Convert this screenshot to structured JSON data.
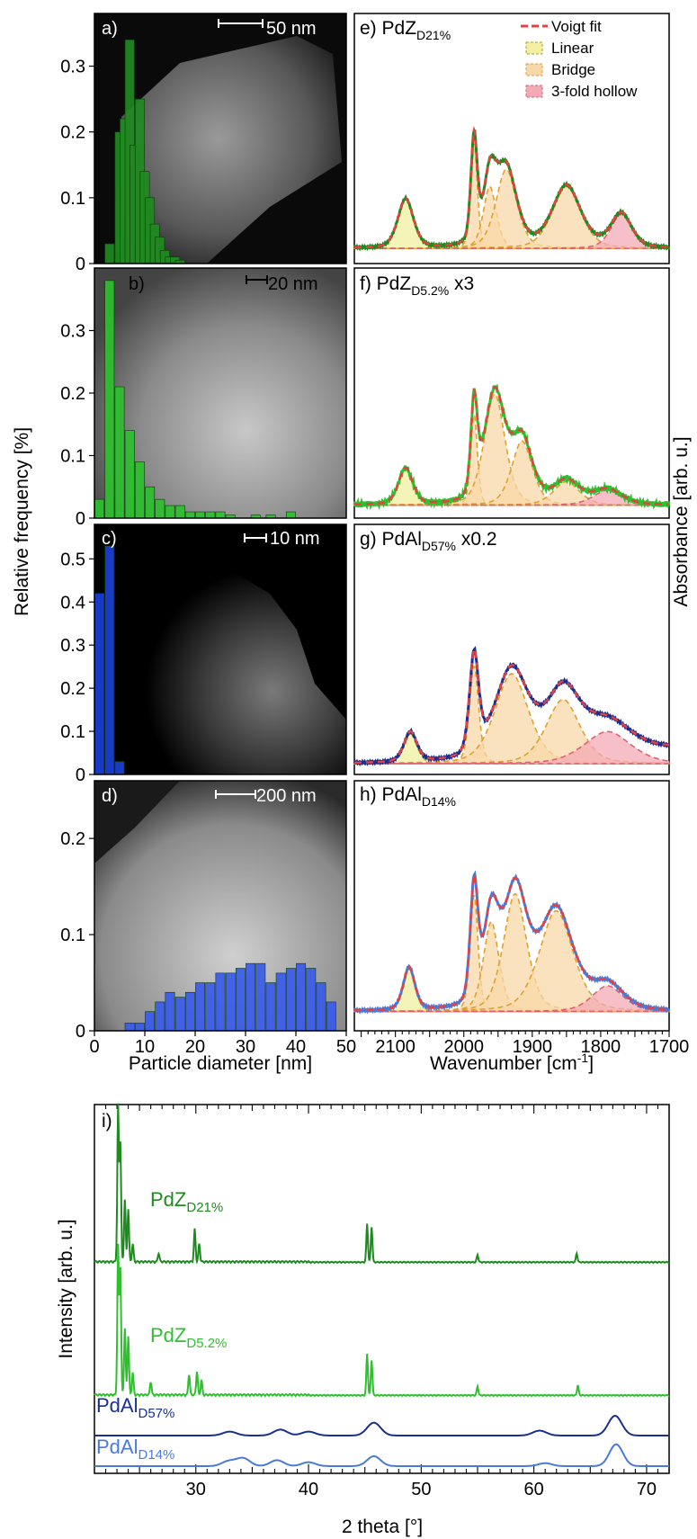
{
  "colors": {
    "green_dark": "#1f8a1f",
    "green_light": "#2fbf2f",
    "blue_dark": "#1a2f8f",
    "blue_light": "#4a7ad8",
    "voigt": "#e84040",
    "linear_fill": "#f2f0a0",
    "linear_line": "#b0a020",
    "bridge_fill": "#f8d8a8",
    "bridge_line": "#e0a030",
    "hollow_fill": "#f4aab4"
  },
  "histogram": {
    "y_axis_label": "Relative frequency [%]",
    "x_axis_label": "Particle diameter [nm]",
    "x_ticks": [
      "0",
      "10",
      "20",
      "30",
      "40",
      "50"
    ],
    "panels": [
      {
        "letter": "a)",
        "scale_text": "50 nm",
        "y_ticks": [
          "0",
          "0.1",
          "0.2",
          "0.3"
        ]
      },
      {
        "letter": "b)",
        "scale_text": "20 nm",
        "y_ticks": [
          "0",
          "0.1",
          "0.2",
          "0.3"
        ]
      },
      {
        "letter": "c)",
        "scale_text": "10 nm",
        "y_ticks": [
          "0",
          "0.1",
          "0.2",
          "0.3",
          "0.4",
          "0.5"
        ]
      },
      {
        "letter": "d)",
        "scale_text": "200 nm",
        "y_ticks": [
          "0",
          "0.1",
          "0.2"
        ]
      }
    ]
  },
  "ir": {
    "y_axis_label": "Absorbance [arb. u.]",
    "x_axis_label": "Wavenumber [cm",
    "x_axis_label_sup": "-1",
    "x_axis_label_end": "]",
    "x_ticks": [
      "2100",
      "2000",
      "1900",
      "1800",
      "1700"
    ],
    "legend": {
      "voigt": "Voigt fit",
      "linear": "Linear",
      "bridge": "Bridge",
      "hollow": "3-fold hollow"
    },
    "panels": [
      {
        "letter": "e) PdZ",
        "sub": "D21%",
        "suffix": ""
      },
      {
        "letter": "f) PdZ",
        "sub": "D5.2%",
        "suffix": " x3"
      },
      {
        "letter": "g) PdAl",
        "sub": "D57%",
        "suffix": " x0.2"
      },
      {
        "letter": "h) PdAl",
        "sub": "D14%",
        "suffix": ""
      }
    ]
  },
  "xrd": {
    "letter": "i)",
    "y_axis_label": "Intensity [arb. u.]",
    "x_axis_label": "2 theta [°]",
    "x_ticks": [
      "30",
      "40",
      "50",
      "60",
      "70"
    ],
    "labels": [
      {
        "main": "PdZ",
        "sub": "D21%"
      },
      {
        "main": "PdZ",
        "sub": "D5.2%"
      },
      {
        "main": "PdAl",
        "sub": "D57%"
      },
      {
        "main": "PdAl",
        "sub": "D14%"
      }
    ]
  },
  "chart_data": [
    {
      "type": "bar",
      "title": "a)",
      "xlabel": "Particle diameter [nm]",
      "ylabel": "Relative frequency [%]",
      "xlim": [
        0,
        50
      ],
      "ylim": [
        0,
        0.38
      ],
      "x": [
        3,
        5,
        6,
        7,
        8,
        9,
        10,
        11,
        12,
        13,
        14,
        15,
        16,
        17
      ],
      "values": [
        0.03,
        0.2,
        0.22,
        0.34,
        0.18,
        0.25,
        0.14,
        0.1,
        0.06,
        0.04,
        0.02,
        0.01,
        0.01,
        0.005
      ]
    },
    {
      "type": "bar",
      "title": "b)",
      "xlabel": "Particle diameter [nm]",
      "ylabel": "Relative frequency [%]",
      "xlim": [
        0,
        50
      ],
      "ylim": [
        0,
        0.4
      ],
      "x": [
        1,
        3,
        5,
        7,
        9,
        11,
        13,
        15,
        17,
        19,
        21,
        23,
        25,
        27,
        32,
        35,
        39
      ],
      "values": [
        0.03,
        0.38,
        0.21,
        0.14,
        0.09,
        0.05,
        0.03,
        0.02,
        0.02,
        0.01,
        0.01,
        0.01,
        0.01,
        0.005,
        0.005,
        0.005,
        0.01
      ]
    },
    {
      "type": "bar",
      "title": "c)",
      "xlabel": "Particle diameter [nm]",
      "ylabel": "Relative frequency [%]",
      "xlim": [
        0,
        50
      ],
      "ylim": [
        0,
        0.58
      ],
      "x": [
        1,
        3,
        5
      ],
      "values": [
        0.42,
        0.53,
        0.03
      ]
    },
    {
      "type": "bar",
      "title": "d)",
      "xlabel": "Particle diameter [nm]",
      "ylabel": "Relative frequency [%]",
      "xlim": [
        0,
        50
      ],
      "ylim": [
        0,
        0.26
      ],
      "x": [
        7,
        9,
        11,
        13,
        15,
        17,
        19,
        21,
        23,
        25,
        27,
        29,
        31,
        33,
        35,
        37,
        39,
        41,
        43,
        45,
        47
      ],
      "values": [
        0.008,
        0.008,
        0.02,
        0.03,
        0.04,
        0.035,
        0.04,
        0.05,
        0.05,
        0.06,
        0.06,
        0.065,
        0.07,
        0.07,
        0.05,
        0.06,
        0.065,
        0.07,
        0.065,
        0.05,
        0.03
      ]
    },
    {
      "type": "line",
      "title": "e) PdZD21%",
      "xlabel": "Wavenumber [cm-1]",
      "ylabel": "Absorbance [arb. u.]",
      "xlim": [
        2160,
        1700
      ],
      "ylim": [
        0,
        1
      ],
      "base": 0.02,
      "tail": 0.0,
      "linear_base": 0.0,
      "peaks": [
        {
          "kind": "linear",
          "center": 2085,
          "amp": 0.23,
          "width": 12
        },
        {
          "kind": "bridge",
          "center": 1985,
          "amp": 0.5,
          "width": 5
        },
        {
          "kind": "bridge",
          "center": 1962,
          "amp": 0.29,
          "width": 10
        },
        {
          "kind": "bridge",
          "center": 1938,
          "amp": 0.37,
          "width": 16
        },
        {
          "kind": "bridge",
          "center": 1850,
          "amp": 0.29,
          "width": 22
        },
        {
          "kind": "hollow",
          "center": 1770,
          "amp": 0.16,
          "width": 16
        }
      ]
    },
    {
      "type": "line",
      "title": "f) PdZD5.2% x3",
      "xlabel": "Wavenumber [cm-1]",
      "ylabel": "Absorbance [arb. u.]",
      "xlim": [
        2160,
        1700
      ],
      "ylim": [
        0,
        1
      ],
      "base": 0.01,
      "tail": 0.0,
      "linear_base": 0.0,
      "peaks": [
        {
          "kind": "linear",
          "center": 2085,
          "amp": 0.17,
          "width": 11
        },
        {
          "kind": "bridge",
          "center": 1985,
          "amp": 0.43,
          "width": 5
        },
        {
          "kind": "bridge",
          "center": 1955,
          "amp": 0.52,
          "width": 16
        },
        {
          "kind": "bridge",
          "center": 1915,
          "amp": 0.3,
          "width": 16
        },
        {
          "kind": "bridge",
          "center": 1850,
          "amp": 0.11,
          "width": 20
        },
        {
          "kind": "hollow",
          "center": 1790,
          "amp": 0.07,
          "width": 22
        }
      ]
    },
    {
      "type": "line",
      "title": "g) PdAlD57% x0.2",
      "xlabel": "Wavenumber [cm-1]",
      "ylabel": "Absorbance [arb. u.]",
      "xlim": [
        2160,
        1700
      ],
      "ylim": [
        0,
        1
      ],
      "base": 0.0,
      "tail": 0.07,
      "linear_base": 0.0,
      "peaks": [
        {
          "kind": "linear",
          "center": 2078,
          "amp": 0.14,
          "width": 10
        },
        {
          "kind": "bridge",
          "center": 1985,
          "amp": 0.46,
          "width": 7
        },
        {
          "kind": "bridge",
          "center": 1930,
          "amp": 0.42,
          "width": 26
        },
        {
          "kind": "bridge",
          "center": 1855,
          "amp": 0.3,
          "width": 26
        },
        {
          "kind": "hollow",
          "center": 1790,
          "amp": 0.15,
          "width": 36
        }
      ]
    },
    {
      "type": "line",
      "title": "h) PdAlD14%",
      "xlabel": "Wavenumber [cm-1]",
      "ylabel": "Absorbance [arb. u.]",
      "xlim": [
        2160,
        1700
      ],
      "ylim": [
        0,
        1
      ],
      "base": 0.04,
      "tail": 0.0,
      "linear_base": 0.0,
      "peaks": [
        {
          "kind": "linear",
          "center": 2080,
          "amp": 0.2,
          "width": 9
        },
        {
          "kind": "bridge",
          "center": 1985,
          "amp": 0.55,
          "width": 6
        },
        {
          "kind": "bridge",
          "center": 1960,
          "amp": 0.42,
          "width": 12
        },
        {
          "kind": "bridge",
          "center": 1925,
          "amp": 0.55,
          "width": 18
        },
        {
          "kind": "bridge",
          "center": 1865,
          "amp": 0.47,
          "width": 26
        },
        {
          "kind": "hollow",
          "center": 1790,
          "amp": 0.12,
          "width": 24
        }
      ]
    },
    {
      "type": "line",
      "title": "i)",
      "xlabel": "2 theta [°]",
      "ylabel": "Intensity [arb. u.]",
      "xlim": [
        21,
        72
      ],
      "series": [
        {
          "name": "PdZD21%",
          "offset": 3.0,
          "peaks": [
            [
              23.1,
              1.05
            ],
            [
              23.3,
              0.8
            ],
            [
              23.7,
              0.42
            ],
            [
              24.0,
              0.36
            ],
            [
              24.4,
              0.12
            ],
            [
              26.7,
              0.06
            ],
            [
              29.9,
              0.22
            ],
            [
              30.3,
              0.12
            ],
            [
              45.2,
              0.26
            ],
            [
              45.6,
              0.24
            ],
            [
              55.0,
              0.05
            ],
            [
              63.8,
              0.06
            ]
          ]
        },
        {
          "name": "PdZD5.2%",
          "offset": 1.55,
          "peaks": [
            [
              23.1,
              1.0
            ],
            [
              23.3,
              0.85
            ],
            [
              23.7,
              0.45
            ],
            [
              24.0,
              0.4
            ],
            [
              24.4,
              0.15
            ],
            [
              26.0,
              0.09
            ],
            [
              29.4,
              0.14
            ],
            [
              30.1,
              0.16
            ],
            [
              30.5,
              0.1
            ],
            [
              45.2,
              0.28
            ],
            [
              45.6,
              0.24
            ],
            [
              55.0,
              0.06
            ],
            [
              63.9,
              0.07
            ]
          ]
        },
        {
          "name": "PdAlD57%",
          "offset": 0.55,
          "broad": [
            [
              33.0,
              0.04
            ],
            [
              37.5,
              0.06
            ],
            [
              40.0,
              0.04
            ],
            [
              45.8,
              0.13
            ],
            [
              60.5,
              0.05
            ],
            [
              67.2,
              0.2
            ]
          ]
        },
        {
          "name": "PdAlD14%",
          "offset": 0.0,
          "broad": [
            [
              32.9,
              0.05
            ],
            [
              34.2,
              0.08
            ],
            [
              37.2,
              0.06
            ],
            [
              40.0,
              0.04
            ],
            [
              45.8,
              0.1
            ],
            [
              61.0,
              0.03
            ],
            [
              67.3,
              0.22
            ]
          ]
        }
      ]
    }
  ]
}
